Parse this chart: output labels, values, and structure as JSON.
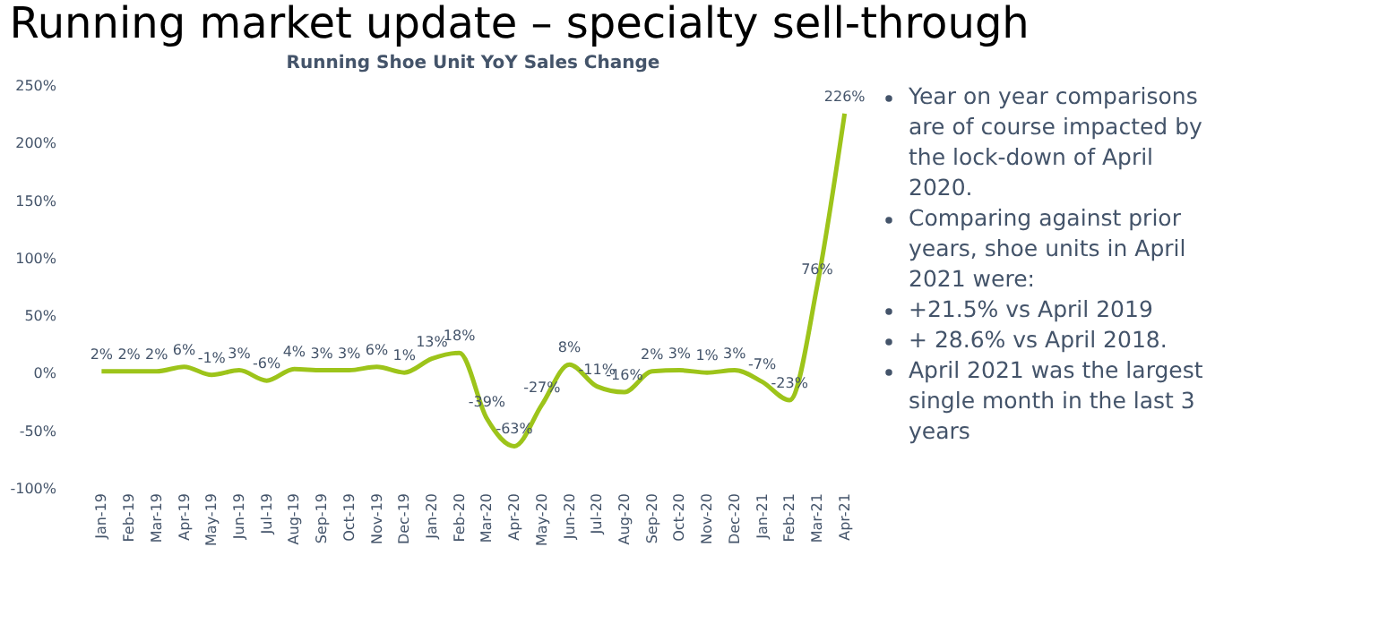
{
  "chart_data": {
    "type": "line",
    "title": "Running market update – specialty sell-through",
    "subtitle": "Running Shoe Unit YoY Sales Change",
    "categories": [
      "Jan-19",
      "Feb-19",
      "Mar-19",
      "Apr-19",
      "May-19",
      "Jun-19",
      "Jul-19",
      "Aug-19",
      "Sep-19",
      "Oct-19",
      "Nov-19",
      "Dec-19",
      "Jan-20",
      "Feb-20",
      "Mar-20",
      "Apr-20",
      "May-20",
      "Jun-20",
      "Jul-20",
      "Aug-20",
      "Sep-20",
      "Oct-20",
      "Nov-20",
      "Dec-20",
      "Jan-21",
      "Feb-21",
      "Mar-21",
      "Apr-21"
    ],
    "series": [
      {
        "color": "#9dc41a",
        "values": [
          2,
          2,
          2,
          6,
          -1,
          3,
          -6,
          4,
          3,
          3,
          6,
          1,
          13,
          18,
          -39,
          -63,
          -27,
          8,
          -11,
          -16,
          2,
          3,
          1,
          3,
          -7,
          -23,
          76,
          226
        ],
        "value_labels": [
          "2%",
          "2%",
          "2%",
          "6%",
          "-1%",
          "3%",
          "-6%",
          "4%",
          "3%",
          "3%",
          "6%",
          "1%",
          "13%",
          "18%",
          "-39%",
          "-63%",
          "-27%",
          "8%",
          "-11%",
          "-16%",
          "2%",
          "3%",
          "1%",
          "3%",
          "-7%",
          "-23%",
          "76%",
          "226%"
        ]
      }
    ],
    "ylim": [
      -100,
      250
    ],
    "yticks": [
      {
        "value": -100,
        "label": "-100%"
      },
      {
        "value": -50,
        "label": "-50%"
      },
      {
        "value": 0,
        "label": "0%"
      },
      {
        "value": 50,
        "label": "50%"
      },
      {
        "value": 100,
        "label": "100%"
      },
      {
        "value": 150,
        "label": "150%"
      },
      {
        "value": 200,
        "label": "200%"
      },
      {
        "value": 250,
        "label": "250%"
      }
    ],
    "grid": false,
    "marker": "none",
    "line_style": "solid",
    "annotations": [
      "Year on year comparisons are of course impacted by the lock-down of April 2020.",
      "Comparing against prior years, shoe units in April 2021 were:",
      "+21.5% vs April 2019",
      "+ 28.6% vs April 2018.",
      "April 2021 was the largest single month in the last 3 years"
    ]
  }
}
